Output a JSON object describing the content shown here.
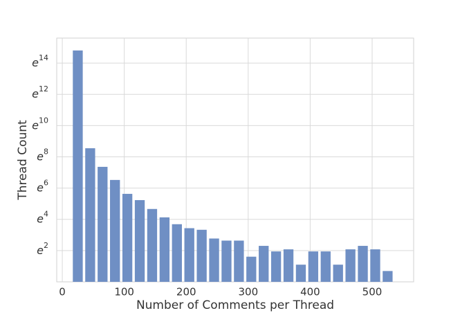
{
  "chart_data": {
    "type": "histogram",
    "x_label": "Number of Comments per Thread",
    "y_label": "Thread Count",
    "bins": [
      15,
      35,
      55,
      75,
      95,
      115,
      135,
      155,
      175,
      195,
      215,
      235,
      255,
      275,
      295,
      315,
      335,
      355,
      375,
      395,
      415,
      435,
      455,
      475,
      495,
      515,
      535
    ],
    "values": [
      2700000,
      5166,
      1572,
      679,
      279,
      187,
      106,
      62,
      40,
      31,
      28,
      16,
      14,
      14,
      5,
      10,
      7,
      8,
      3,
      7,
      7,
      3,
      8,
      10,
      8,
      2
    ],
    "color": "#6f8fc4",
    "xlim": [
      -9,
      567
    ],
    "xticks": [
      0,
      100,
      200,
      300,
      400,
      500
    ],
    "yscale": "log",
    "ylim": [
      1,
      5960000
    ],
    "yticks": [
      {
        "value": 7.389,
        "label": "e2"
      },
      {
        "value": 54.598,
        "label": "e4"
      },
      {
        "value": 403.429,
        "label": "e6"
      },
      {
        "value": 2980.958,
        "label": "e8"
      },
      {
        "value": 22026.466,
        "label": "e10"
      },
      {
        "value": 162754.791,
        "label": "e12"
      },
      {
        "value": 1202604.284,
        "label": "e14"
      }
    ],
    "grid": true
  }
}
